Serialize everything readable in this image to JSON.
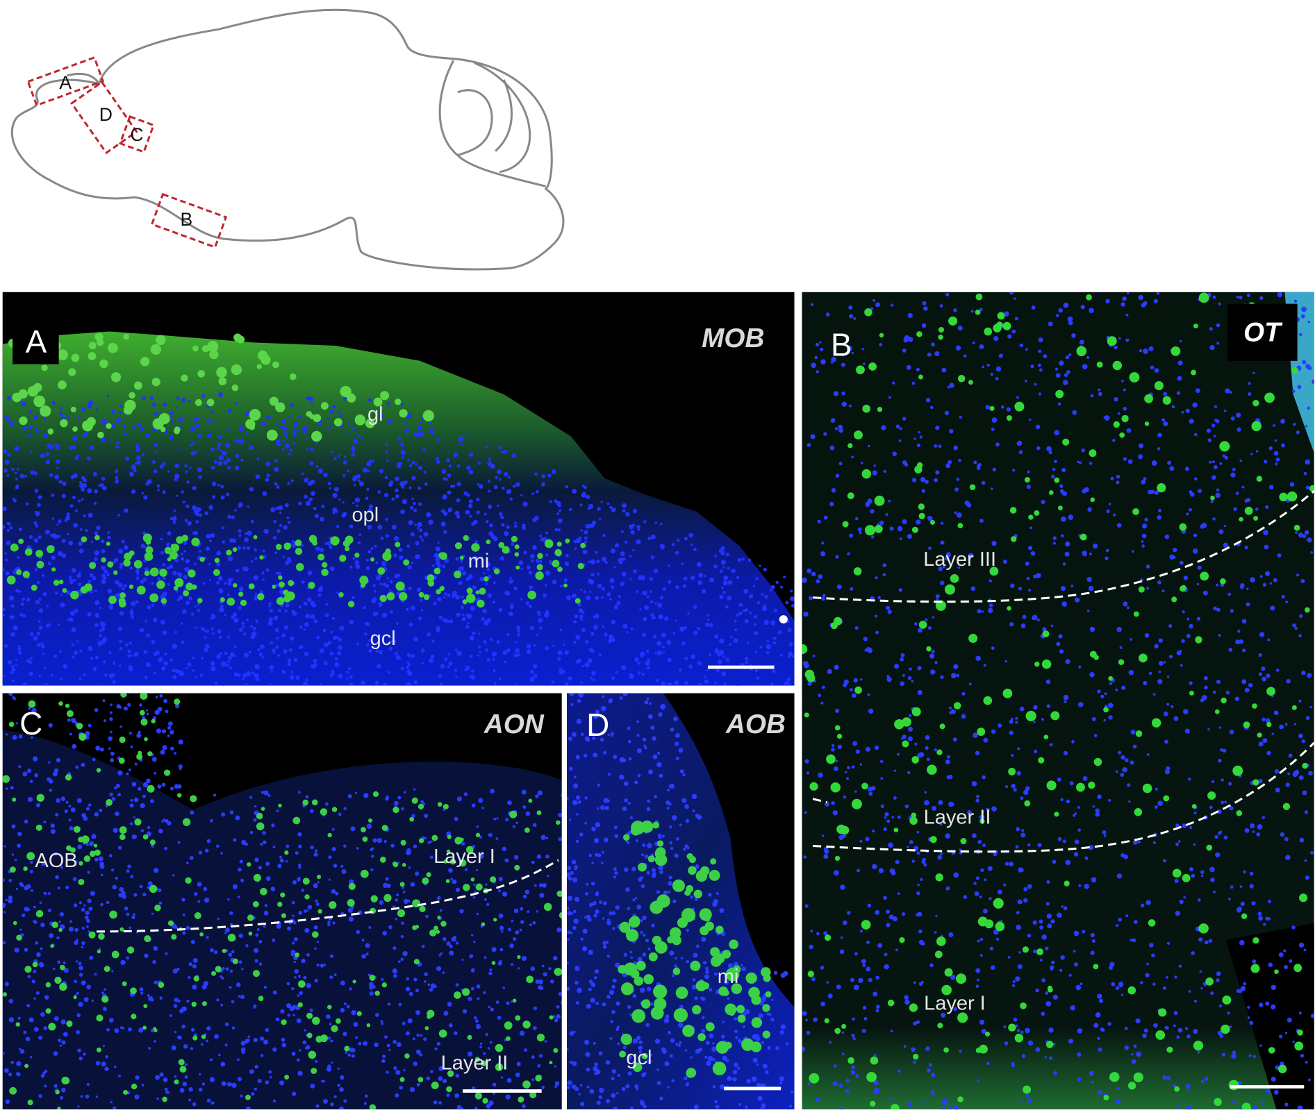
{
  "schematic": {
    "labels": [
      "A",
      "B",
      "C",
      "D"
    ]
  },
  "panels": [
    {
      "letter": "A",
      "region": "MOB",
      "labels": [
        "gl",
        "opl",
        "mi",
        "gcl"
      ]
    },
    {
      "letter": "B",
      "region": "OT",
      "labels": [
        "Layer III",
        "Layer II",
        "Layer I"
      ]
    },
    {
      "letter": "C",
      "region": "AON",
      "labels": [
        "AOB",
        "Layer I",
        "Layer II"
      ]
    },
    {
      "letter": "D",
      "region": "AOB",
      "labels": [
        "mi",
        "gcl"
      ]
    }
  ]
}
